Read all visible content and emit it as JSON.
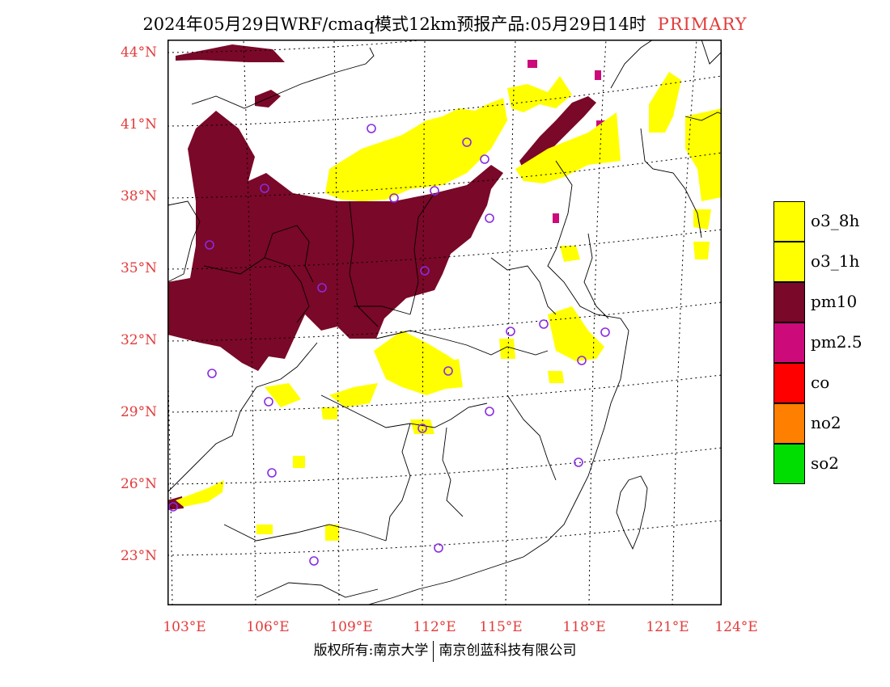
{
  "header": {
    "title": "2024年05月29日WRF/cmaq模式12km预报产品:05月29日14时",
    "tag": "PRIMARY"
  },
  "axes": {
    "lat_labels": [
      "44°N",
      "41°N",
      "38°N",
      "35°N",
      "32°N",
      "29°N",
      "26°N",
      "23°N"
    ],
    "lon_labels": [
      "103°E",
      "106°E",
      "109°E",
      "112°E",
      "115°E",
      "118°E",
      "121°E",
      "124°E"
    ]
  },
  "legend": {
    "items": [
      {
        "label": "o3_8h",
        "color": "#ffff00"
      },
      {
        "label": "o3_1h",
        "color": "#ffff00"
      },
      {
        "label": "pm10",
        "color": "#7a0828"
      },
      {
        "label": "pm2.5",
        "color": "#cc0a7a"
      },
      {
        "label": "co",
        "color": "#ff0000"
      },
      {
        "label": "no2",
        "color": "#ff7f00"
      },
      {
        "label": "so2",
        "color": "#00dd00"
      }
    ]
  },
  "colors": {
    "pm10": "#7a0828",
    "pm25": "#cc0a7a",
    "ozone": "#ffff00",
    "label": "#e23b3b",
    "station": "#8a2be2"
  },
  "footer": {
    "left": "版权所有:南京大学",
    "right": "南京创蓝科技有限公司"
  }
}
